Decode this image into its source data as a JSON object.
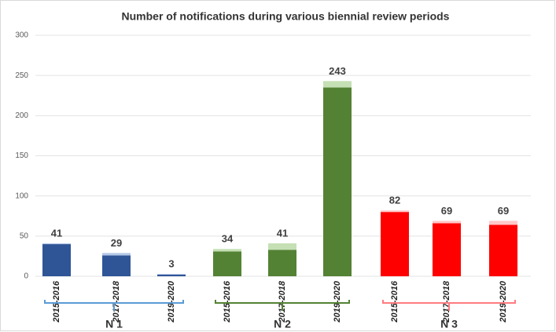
{
  "chart_data": {
    "type": "grouped-stacked-bar",
    "title": "Number of notifications during various biennial review periods",
    "ylim": [
      0,
      300
    ],
    "yticks": [
      0,
      50,
      100,
      150,
      200,
      250,
      300
    ],
    "grid": true,
    "groups": [
      {
        "name": "N 1",
        "color": "#2f5597",
        "light_color": "#b4c7e7",
        "bracket_color": "#5b9bd5",
        "periods": [
          "2015-2016",
          "2017-2018",
          "2019-2020"
        ],
        "base": [
          40,
          26,
          2
        ],
        "top": [
          1,
          3,
          1
        ],
        "totals": [
          41,
          29,
          3
        ]
      },
      {
        "name": "N 2",
        "color": "#548235",
        "light_color": "#c5e0b4",
        "bracket_color": "#548235",
        "periods": [
          "2015-2016",
          "2017-2018",
          "2019-2020"
        ],
        "base": [
          31,
          33,
          235
        ],
        "top": [
          3,
          8,
          8
        ],
        "totals": [
          34,
          41,
          243
        ]
      },
      {
        "name": "N 3",
        "color": "#ff0000",
        "light_color": "#ffc7c7",
        "bracket_color": "#ff7c80",
        "periods": [
          "2015-2016",
          "2017-2018",
          "2019-2020"
        ],
        "base": [
          80,
          66,
          64
        ],
        "top": [
          2,
          3,
          5
        ],
        "totals": [
          82,
          69,
          69
        ]
      }
    ]
  }
}
